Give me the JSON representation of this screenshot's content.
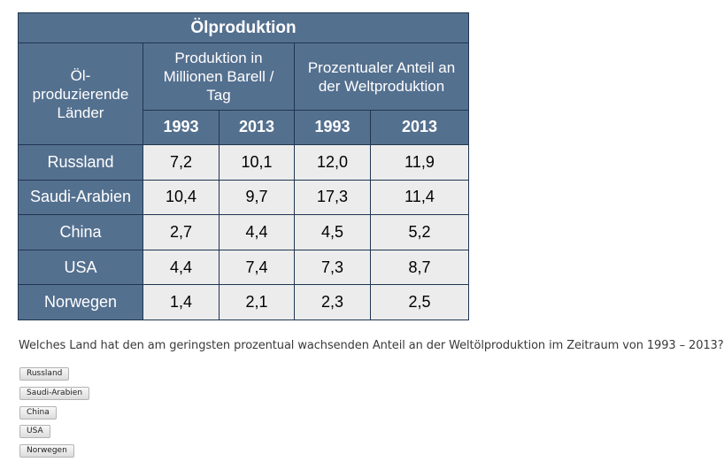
{
  "table": {
    "title": "Ölproduktion",
    "country_header": "Öl-produzierende Länder",
    "production_header": "Produktion in Millionen Barell / Tag",
    "share_header": "Prozentualer Anteil an der Weltproduktion",
    "years": [
      "1993",
      "2013",
      "1993",
      "2013"
    ],
    "rows": [
      {
        "country": "Russland",
        "values": [
          "7,2",
          "10,1",
          "12,0",
          "11,9"
        ]
      },
      {
        "country": "Saudi-Arabien",
        "values": [
          "10,4",
          "9,7",
          "17,3",
          "11,4"
        ]
      },
      {
        "country": "China",
        "values": [
          "2,7",
          "4,4",
          "4,5",
          "5,2"
        ]
      },
      {
        "country": "USA",
        "values": [
          "4,4",
          "7,4",
          "7,3",
          "8,7"
        ]
      },
      {
        "country": "Norwegen",
        "values": [
          "1,4",
          "2,1",
          "2,3",
          "2,5"
        ]
      }
    ]
  },
  "question": "Welches Land hat den am geringsten prozentual wachsenden Anteil an der Weltölproduktion im Zeitraum von 1993 – 2013?",
  "answers": [
    "Russland",
    "Saudi-Arabien",
    "China",
    "USA",
    "Norwegen"
  ],
  "colors": {
    "header_bg": "#54708f",
    "cell_bg": "#ececec",
    "border": "#1f3550"
  }
}
